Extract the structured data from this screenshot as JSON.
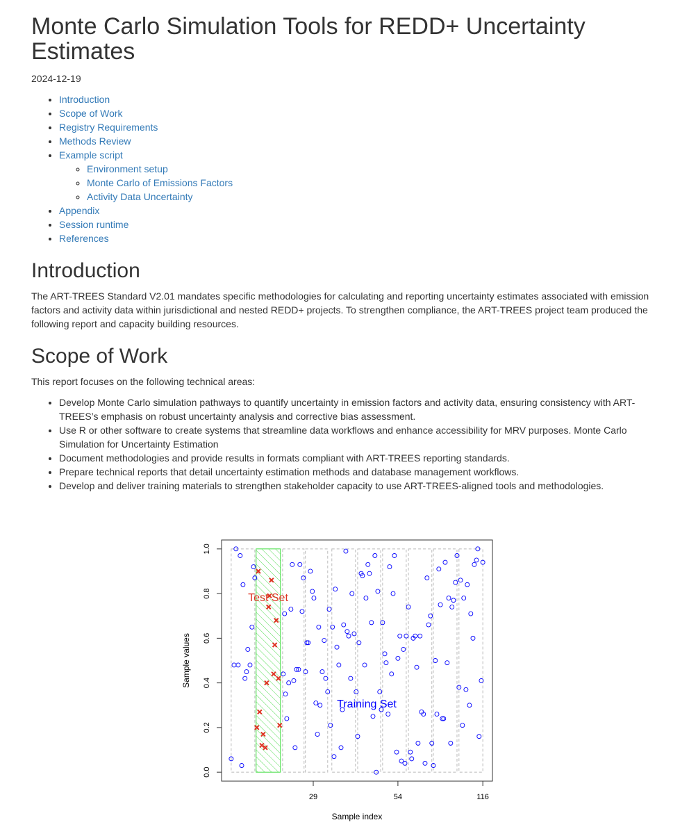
{
  "title": "Monte Carlo Simulation Tools for REDD+ Uncertainty Estimates",
  "date": "2024-12-19",
  "toc": [
    {
      "label": "Introduction"
    },
    {
      "label": "Scope of Work"
    },
    {
      "label": "Registry Requirements"
    },
    {
      "label": "Methods Review"
    },
    {
      "label": "Example script",
      "children": [
        "Environment setup",
        "Monte Carlo of Emissions Factors",
        "Activity Data Uncertainty"
      ]
    },
    {
      "label": "Appendix"
    },
    {
      "label": "Session runtime"
    },
    {
      "label": "References"
    }
  ],
  "sections": [
    {
      "heading": "Introduction",
      "paragraphs": [
        "The ART-TREES Standard V2.01 mandates specific methodologies for calculating and reporting uncertainty estimates associated with emission factors and activity data within jurisdictional and nested REDD+ projects. To strengthen compliance, the ART-TREES project team produced the following report and capacity building resources."
      ]
    },
    {
      "heading": "Scope of Work",
      "paragraphs": [
        "This report focuses on the following technical areas:"
      ],
      "bullets": [
        "Develop Monte Carlo simulation pathways to quantify uncertainty in emission factors and activity data, ensuring consistency with ART-TREES’s emphasis on robust uncertainty analysis and corrective bias assessment.",
        "Use R or other software to create systems that streamline data workflows and enhance accessibility for MRV purposes. Monte Carlo Simulation for Uncertainty Estimation",
        "Document methodologies and provide results in formats compliant with ART-TREES reporting standards.",
        "Prepare technical reports that detail uncertainty estimation methods and database management workflows.",
        "Develop and deliver training materials to strengthen stakeholder capacity to use ART-TREES-aligned tools and methodologies."
      ]
    }
  ],
  "chart_data": {
    "type": "scatter",
    "x_label": "Sample index",
    "y_label": "Sample values",
    "annotations": [
      "Test Set",
      "Training Set"
    ],
    "xlim": [
      -3.4,
      120.4
    ],
    "ylim": [
      -0.04,
      1.04
    ],
    "xticks": [
      {
        "value": 38.5,
        "label": "29"
      },
      {
        "value": 77.2,
        "label": "54"
      },
      116
    ],
    "yticks": [
      {
        "value": 0,
        "label": "0.0"
      },
      0.2,
      0.4,
      0.6,
      0.8,
      {
        "value": 1,
        "label": "1.0"
      }
    ],
    "folds": [
      [
        1,
        11.8
      ],
      [
        12.4,
        23.5
      ],
      [
        24.5,
        34.3
      ],
      [
        34.9,
        45.1
      ],
      [
        47.0,
        57.8
      ],
      [
        58.8,
        69.3
      ],
      [
        70.2,
        81.0
      ],
      [
        82.0,
        92.7
      ],
      [
        93.4,
        104.2
      ],
      [
        105.1,
        116
      ]
    ],
    "test_fold": 1,
    "series": [
      {
        "name": "Training Set",
        "color": "#0000ff",
        "marker": "circle",
        "x": [
          1.0,
          2.3,
          3.2,
          4.2,
          5.1,
          5.8,
          6.4,
          7.3,
          8.0,
          8.6,
          9.6,
          10.5,
          11.2,
          11.8,
          24.8,
          25.4,
          25.8,
          26.4,
          27.3,
          28.3,
          28.9,
          29.6,
          30.2,
          30.8,
          31.8,
          32.4,
          33.4,
          34.0,
          35.0,
          35.6,
          36.2,
          37.2,
          38.1,
          38.8,
          39.7,
          40.4,
          41.0,
          41.6,
          42.6,
          43.5,
          44.2,
          45.1,
          45.8,
          46.4,
          47.3,
          48.0,
          48.6,
          49.3,
          50.2,
          51.2,
          51.8,
          52.4,
          53.4,
          54.0,
          54.7,
          55.6,
          56.2,
          57.2,
          58.1,
          58.8,
          59.4,
          60.4,
          61.0,
          62.0,
          62.6,
          63.5,
          64.2,
          65.1,
          65.8,
          66.7,
          67.3,
          68.0,
          68.9,
          69.6,
          70.2,
          71.2,
          71.8,
          72.7,
          73.4,
          74.3,
          75.0,
          75.6,
          76.6,
          77.2,
          78.1,
          78.8,
          79.7,
          80.4,
          81.0,
          82.0,
          82.9,
          83.5,
          84.2,
          85.1,
          85.8,
          86.4,
          87.3,
          88.0,
          88.9,
          89.6,
          90.5,
          91.2,
          92.1,
          92.7,
          93.4,
          94.3,
          95.0,
          95.9,
          96.6,
          97.5,
          98.1,
          98.8,
          99.7,
          100.4,
          101.3,
          101.9,
          102.6,
          103.5,
          104.2,
          105.1,
          105.8,
          106.7,
          107.3,
          108.3,
          108.9,
          109.9,
          110.5,
          111.5,
          112.1,
          113.1,
          113.7,
          114.3,
          115.3,
          116.0
        ],
        "values": [
          0.06,
          0.48,
          1.0,
          0.48,
          0.97,
          0.03,
          0.84,
          0.42,
          0.45,
          0.55,
          0.48,
          0.65,
          0.92,
          0.87,
          0.44,
          0.71,
          0.35,
          0.24,
          0.4,
          0.73,
          0.93,
          0.41,
          0.11,
          0.46,
          0.46,
          0.93,
          0.72,
          0.87,
          0.45,
          0.58,
          0.58,
          0.9,
          0.81,
          0.78,
          0.31,
          0.17,
          0.65,
          0.3,
          0.45,
          0.59,
          0.42,
          0.36,
          0.73,
          0.21,
          0.65,
          0.07,
          0.82,
          0.56,
          0.48,
          0.11,
          0.28,
          0.66,
          0.99,
          0.63,
          0.61,
          0.42,
          0.8,
          0.62,
          0.36,
          0.16,
          0.58,
          0.89,
          0.88,
          0.48,
          0.78,
          0.93,
          0.89,
          0.67,
          0.25,
          0.97,
          0.0,
          0.81,
          0.36,
          0.28,
          0.67,
          0.53,
          0.49,
          0.26,
          0.92,
          0.44,
          0.8,
          0.97,
          0.09,
          0.51,
          0.61,
          0.05,
          0.55,
          0.04,
          0.61,
          0.74,
          0.09,
          0.06,
          0.6,
          0.61,
          0.47,
          0.13,
          0.61,
          0.27,
          0.26,
          0.04,
          0.87,
          0.66,
          0.7,
          0.13,
          0.03,
          0.5,
          0.26,
          0.91,
          0.75,
          0.24,
          0.24,
          0.94,
          0.49,
          0.78,
          0.13,
          0.74,
          0.77,
          0.85,
          0.97,
          0.38,
          0.86,
          0.21,
          0.78,
          0.37,
          0.84,
          0.3,
          0.71,
          0.6,
          0.93,
          0.95,
          1.0,
          0.16,
          0.41,
          0.94
        ]
      },
      {
        "name": "Test Set",
        "color": "#dd3322",
        "marker": "cross",
        "x": [
          12.7,
          13.4,
          14.0,
          15.0,
          15.6,
          16.6,
          17.2,
          18.1,
          18.5,
          19.4,
          20.4,
          20.9,
          21.6,
          22.6,
          23.2
        ],
        "values": [
          0.2,
          0.9,
          0.27,
          0.12,
          0.17,
          0.11,
          0.4,
          0.74,
          0.79,
          0.86,
          0.44,
          0.57,
          0.68,
          0.42,
          0.21
        ]
      }
    ]
  }
}
